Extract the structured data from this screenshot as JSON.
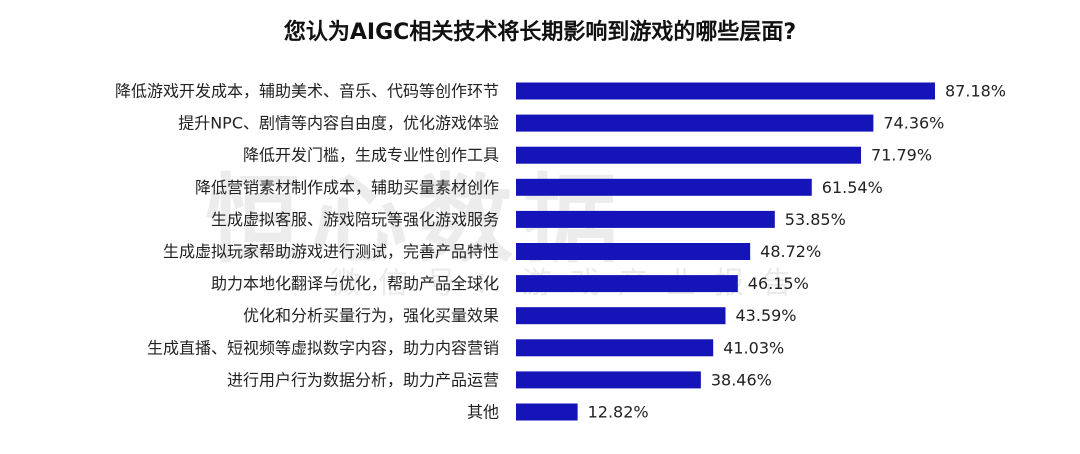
{
  "watermark": {
    "main": "恒心数据",
    "sub": "微信号：游戏产业报告"
  },
  "colors": {
    "bar": "#1414b8",
    "text": "#222222",
    "title": "#111111"
  },
  "chart_data": {
    "type": "bar",
    "orientation": "horizontal",
    "title": "您认为AIGC相关技术将长期影响到游戏的哪些层面?",
    "xlabel": "",
    "ylabel": "",
    "xlim": [
      0,
      100
    ],
    "grid": false,
    "legend": "none",
    "categories": [
      "降低游戏开发成本，辅助美术、音乐、代码等创作环节",
      "提升NPC、剧情等内容自由度，优化游戏体验",
      "降低开发门槛，生成专业性创作工具",
      "降低营销素材制作成本，辅助买量素材创作",
      "生成虚拟客服、游戏陪玩等强化游戏服务",
      "生成虚拟玩家帮助游戏进行测试，完善产品特性",
      "助力本地化翻译与优化，帮助产品全球化",
      "优化和分析买量行为，强化买量效果",
      "生成直播、短视频等虚拟数字内容，助力内容营销",
      "进行用户行为数据分析，助力产品运营",
      "其他"
    ],
    "values": [
      87.18,
      74.36,
      71.79,
      61.54,
      53.85,
      48.72,
      46.15,
      43.59,
      41.03,
      38.46,
      12.82
    ],
    "value_labels": [
      "87.18%",
      "74.36%",
      "71.79%",
      "61.54%",
      "53.85%",
      "48.72%",
      "46.15%",
      "43.59%",
      "41.03%",
      "38.46%",
      "12.82%"
    ]
  }
}
